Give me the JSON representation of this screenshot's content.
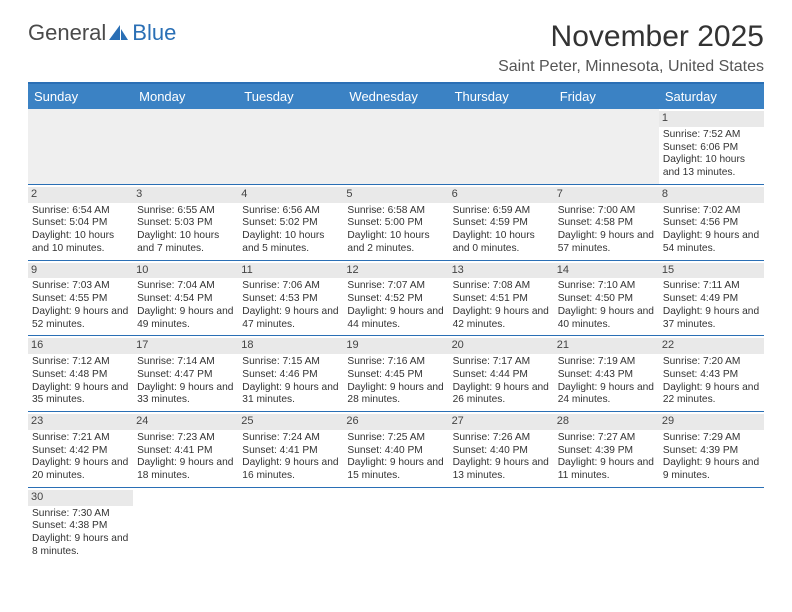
{
  "brand": {
    "part1": "General",
    "part2": "Blue"
  },
  "title": "November 2025",
  "location": "Saint Peter, Minnesota, United States",
  "headerColor": "#3b82c4",
  "dividerColor": "#2a6fb5",
  "dayHeaderBg": "#e9e9e9",
  "columns": [
    "Sunday",
    "Monday",
    "Tuesday",
    "Wednesday",
    "Thursday",
    "Friday",
    "Saturday"
  ],
  "weeks": [
    [
      null,
      null,
      null,
      null,
      null,
      null,
      {
        "n": "1",
        "sr": "Sunrise: 7:52 AM",
        "ss": "Sunset: 6:06 PM",
        "dl": "Daylight: 10 hours and 13 minutes."
      }
    ],
    [
      {
        "n": "2",
        "sr": "Sunrise: 6:54 AM",
        "ss": "Sunset: 5:04 PM",
        "dl": "Daylight: 10 hours and 10 minutes."
      },
      {
        "n": "3",
        "sr": "Sunrise: 6:55 AM",
        "ss": "Sunset: 5:03 PM",
        "dl": "Daylight: 10 hours and 7 minutes."
      },
      {
        "n": "4",
        "sr": "Sunrise: 6:56 AM",
        "ss": "Sunset: 5:02 PM",
        "dl": "Daylight: 10 hours and 5 minutes."
      },
      {
        "n": "5",
        "sr": "Sunrise: 6:58 AM",
        "ss": "Sunset: 5:00 PM",
        "dl": "Daylight: 10 hours and 2 minutes."
      },
      {
        "n": "6",
        "sr": "Sunrise: 6:59 AM",
        "ss": "Sunset: 4:59 PM",
        "dl": "Daylight: 10 hours and 0 minutes."
      },
      {
        "n": "7",
        "sr": "Sunrise: 7:00 AM",
        "ss": "Sunset: 4:58 PM",
        "dl": "Daylight: 9 hours and 57 minutes."
      },
      {
        "n": "8",
        "sr": "Sunrise: 7:02 AM",
        "ss": "Sunset: 4:56 PM",
        "dl": "Daylight: 9 hours and 54 minutes."
      }
    ],
    [
      {
        "n": "9",
        "sr": "Sunrise: 7:03 AM",
        "ss": "Sunset: 4:55 PM",
        "dl": "Daylight: 9 hours and 52 minutes."
      },
      {
        "n": "10",
        "sr": "Sunrise: 7:04 AM",
        "ss": "Sunset: 4:54 PM",
        "dl": "Daylight: 9 hours and 49 minutes."
      },
      {
        "n": "11",
        "sr": "Sunrise: 7:06 AM",
        "ss": "Sunset: 4:53 PM",
        "dl": "Daylight: 9 hours and 47 minutes."
      },
      {
        "n": "12",
        "sr": "Sunrise: 7:07 AM",
        "ss": "Sunset: 4:52 PM",
        "dl": "Daylight: 9 hours and 44 minutes."
      },
      {
        "n": "13",
        "sr": "Sunrise: 7:08 AM",
        "ss": "Sunset: 4:51 PM",
        "dl": "Daylight: 9 hours and 42 minutes."
      },
      {
        "n": "14",
        "sr": "Sunrise: 7:10 AM",
        "ss": "Sunset: 4:50 PM",
        "dl": "Daylight: 9 hours and 40 minutes."
      },
      {
        "n": "15",
        "sr": "Sunrise: 7:11 AM",
        "ss": "Sunset: 4:49 PM",
        "dl": "Daylight: 9 hours and 37 minutes."
      }
    ],
    [
      {
        "n": "16",
        "sr": "Sunrise: 7:12 AM",
        "ss": "Sunset: 4:48 PM",
        "dl": "Daylight: 9 hours and 35 minutes."
      },
      {
        "n": "17",
        "sr": "Sunrise: 7:14 AM",
        "ss": "Sunset: 4:47 PM",
        "dl": "Daylight: 9 hours and 33 minutes."
      },
      {
        "n": "18",
        "sr": "Sunrise: 7:15 AM",
        "ss": "Sunset: 4:46 PM",
        "dl": "Daylight: 9 hours and 31 minutes."
      },
      {
        "n": "19",
        "sr": "Sunrise: 7:16 AM",
        "ss": "Sunset: 4:45 PM",
        "dl": "Daylight: 9 hours and 28 minutes."
      },
      {
        "n": "20",
        "sr": "Sunrise: 7:17 AM",
        "ss": "Sunset: 4:44 PM",
        "dl": "Daylight: 9 hours and 26 minutes."
      },
      {
        "n": "21",
        "sr": "Sunrise: 7:19 AM",
        "ss": "Sunset: 4:43 PM",
        "dl": "Daylight: 9 hours and 24 minutes."
      },
      {
        "n": "22",
        "sr": "Sunrise: 7:20 AM",
        "ss": "Sunset: 4:43 PM",
        "dl": "Daylight: 9 hours and 22 minutes."
      }
    ],
    [
      {
        "n": "23",
        "sr": "Sunrise: 7:21 AM",
        "ss": "Sunset: 4:42 PM",
        "dl": "Daylight: 9 hours and 20 minutes."
      },
      {
        "n": "24",
        "sr": "Sunrise: 7:23 AM",
        "ss": "Sunset: 4:41 PM",
        "dl": "Daylight: 9 hours and 18 minutes."
      },
      {
        "n": "25",
        "sr": "Sunrise: 7:24 AM",
        "ss": "Sunset: 4:41 PM",
        "dl": "Daylight: 9 hours and 16 minutes."
      },
      {
        "n": "26",
        "sr": "Sunrise: 7:25 AM",
        "ss": "Sunset: 4:40 PM",
        "dl": "Daylight: 9 hours and 15 minutes."
      },
      {
        "n": "27",
        "sr": "Sunrise: 7:26 AM",
        "ss": "Sunset: 4:40 PM",
        "dl": "Daylight: 9 hours and 13 minutes."
      },
      {
        "n": "28",
        "sr": "Sunrise: 7:27 AM",
        "ss": "Sunset: 4:39 PM",
        "dl": "Daylight: 9 hours and 11 minutes."
      },
      {
        "n": "29",
        "sr": "Sunrise: 7:29 AM",
        "ss": "Sunset: 4:39 PM",
        "dl": "Daylight: 9 hours and 9 minutes."
      }
    ],
    [
      {
        "n": "30",
        "sr": "Sunrise: 7:30 AM",
        "ss": "Sunset: 4:38 PM",
        "dl": "Daylight: 9 hours and 8 minutes."
      },
      null,
      null,
      null,
      null,
      null,
      null
    ]
  ]
}
